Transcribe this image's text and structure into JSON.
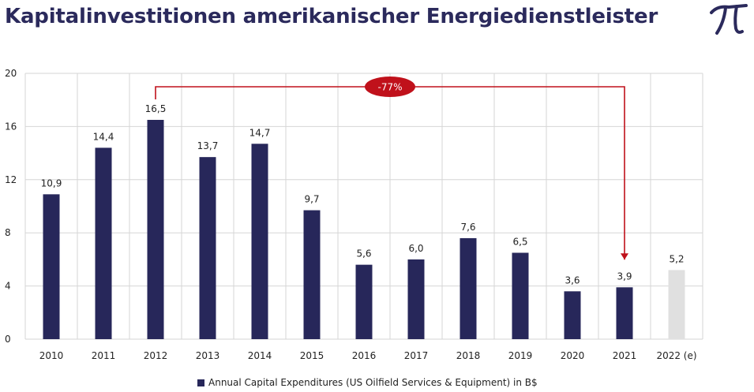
{
  "title": "Kapitalinvestitionen amerikanischer Energiedienstleister",
  "logo": "pi-logo",
  "colors": {
    "bar": "#27275a",
    "estimate_bar": "#e0e0e0",
    "annotation": "#c0111b",
    "title": "#2b2a5c"
  },
  "chart_data": {
    "type": "bar",
    "categories": [
      "2010",
      "2011",
      "2012",
      "2013",
      "2014",
      "2015",
      "2016",
      "2017",
      "2018",
      "2019",
      "2020",
      "2021",
      "2022 (e)"
    ],
    "series": [
      {
        "name": "Annual Capital Expenditures (US Oilfield Services & Equipment) in B$",
        "values": [
          10.9,
          14.4,
          16.5,
          13.7,
          14.7,
          9.7,
          5.6,
          6.0,
          7.6,
          6.5,
          3.6,
          3.9,
          5.2
        ],
        "labels": [
          "10,9",
          "14,4",
          "16,5",
          "13,7",
          "14,7",
          "9,7",
          "5,6",
          "6,0",
          "7,6",
          "6,5",
          "3,6",
          "3,9",
          "5,2"
        ]
      }
    ],
    "estimate_categories": [
      "2022 (e)"
    ],
    "ylim": [
      0,
      20
    ],
    "yticks": [
      0,
      4,
      8,
      12,
      16,
      20
    ],
    "grid": true,
    "legend_position": "bottom",
    "annotation": {
      "label": "-77%",
      "from": "2012",
      "to": "2021"
    }
  }
}
